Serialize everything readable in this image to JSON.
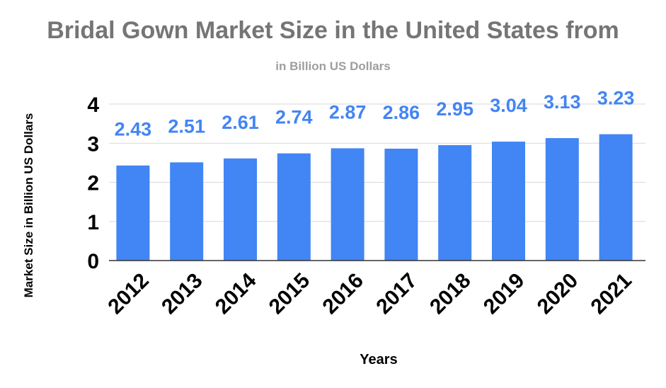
{
  "chart_data": {
    "type": "bar",
    "title": "Bridal Gown Market Size in the United States from",
    "subtitle": "in Billion US Dollars",
    "xlabel": "Years",
    "ylabel": "Market Size in Billion US Dollars",
    "categories": [
      "2012",
      "2013",
      "2014",
      "2015",
      "2016",
      "2017",
      "2018",
      "2019",
      "2020",
      "2021"
    ],
    "values": [
      2.43,
      2.51,
      2.61,
      2.74,
      2.87,
      2.86,
      2.95,
      3.04,
      3.13,
      3.23
    ],
    "data_labels": [
      "2.43",
      "2.51",
      "2.61",
      "2.74",
      "2.87",
      "2.86",
      "2.95",
      "3.04",
      "3.13",
      "3.23"
    ],
    "ylim": [
      0,
      4
    ],
    "yticks": [
      "0",
      "1",
      "2",
      "3",
      "4"
    ],
    "grid": true,
    "legend": "none",
    "colors": {
      "bar": "#4285f4",
      "label": "#4285f4",
      "grid": "#d9d9d9",
      "axis": "#333333"
    }
  }
}
